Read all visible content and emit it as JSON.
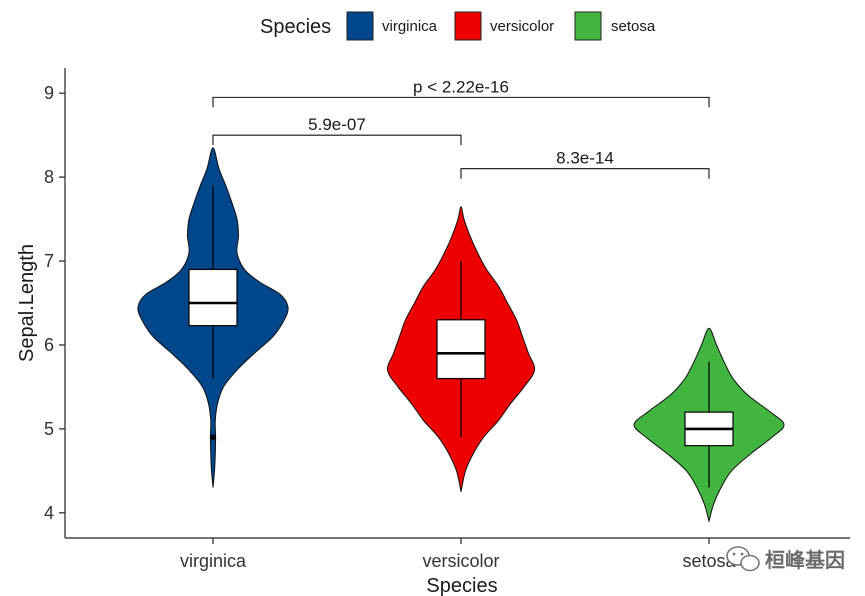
{
  "legend": {
    "title": "Species",
    "items": [
      {
        "label": "virginica",
        "color": "#00468B"
      },
      {
        "label": "versicolor",
        "color": "#ED0000"
      },
      {
        "label": "setosa",
        "color": "#42B540"
      }
    ]
  },
  "watermark": {
    "text": "桓峰基因",
    "icon": "wechat-icon"
  },
  "chart_data": {
    "type": "violin",
    "xlabel": "Species",
    "ylabel": "Sepal.Length",
    "ylim": [
      3.7,
      9.3
    ],
    "yticks": [
      4,
      5,
      6,
      7,
      8,
      9
    ],
    "grid": false,
    "legend_position": "top",
    "categories": [
      "virginica",
      "versicolor",
      "setosa"
    ],
    "colors": [
      "#00468B",
      "#ED0000",
      "#42B540"
    ],
    "series": [
      {
        "name": "virginica",
        "box": {
          "min": 5.6,
          "q1": 6.23,
          "median": 6.5,
          "q3": 6.9,
          "max": 7.9
        },
        "outliers": [
          4.9
        ],
        "violin_range": [
          4.3,
          8.35
        ],
        "density": [
          [
            4.3,
            0.0
          ],
          [
            4.5,
            0.02
          ],
          [
            4.7,
            0.03
          ],
          [
            4.9,
            0.035
          ],
          [
            5.1,
            0.03
          ],
          [
            5.3,
            0.06
          ],
          [
            5.5,
            0.14
          ],
          [
            5.7,
            0.32
          ],
          [
            5.9,
            0.55
          ],
          [
            6.1,
            0.8
          ],
          [
            6.3,
            0.95
          ],
          [
            6.45,
            1.0
          ],
          [
            6.6,
            0.9
          ],
          [
            6.75,
            0.62
          ],
          [
            6.9,
            0.42
          ],
          [
            7.1,
            0.32
          ],
          [
            7.3,
            0.34
          ],
          [
            7.5,
            0.32
          ],
          [
            7.7,
            0.25
          ],
          [
            7.9,
            0.17
          ],
          [
            8.1,
            0.08
          ],
          [
            8.35,
            0.0
          ]
        ]
      },
      {
        "name": "versicolor",
        "box": {
          "min": 4.9,
          "q1": 5.6,
          "median": 5.9,
          "q3": 6.3,
          "max": 7.0
        },
        "outliers": [],
        "violin_range": [
          4.25,
          7.65
        ],
        "density": [
          [
            4.25,
            0.0
          ],
          [
            4.5,
            0.06
          ],
          [
            4.7,
            0.16
          ],
          [
            4.9,
            0.3
          ],
          [
            5.1,
            0.5
          ],
          [
            5.3,
            0.66
          ],
          [
            5.5,
            0.84
          ],
          [
            5.7,
            0.98
          ],
          [
            5.9,
            0.9
          ],
          [
            6.1,
            0.82
          ],
          [
            6.3,
            0.74
          ],
          [
            6.5,
            0.62
          ],
          [
            6.7,
            0.5
          ],
          [
            6.9,
            0.34
          ],
          [
            7.1,
            0.22
          ],
          [
            7.3,
            0.12
          ],
          [
            7.5,
            0.04
          ],
          [
            7.65,
            0.0
          ]
        ]
      },
      {
        "name": "setosa",
        "box": {
          "min": 4.3,
          "q1": 4.8,
          "median": 5.0,
          "q3": 5.2,
          "max": 5.8
        },
        "outliers": [],
        "violin_range": [
          3.9,
          6.2
        ],
        "density": [
          [
            3.9,
            0.0
          ],
          [
            4.1,
            0.06
          ],
          [
            4.3,
            0.16
          ],
          [
            4.5,
            0.3
          ],
          [
            4.7,
            0.55
          ],
          [
            4.9,
            0.84
          ],
          [
            5.05,
            1.0
          ],
          [
            5.2,
            0.82
          ],
          [
            5.4,
            0.52
          ],
          [
            5.6,
            0.32
          ],
          [
            5.8,
            0.2
          ],
          [
            6.0,
            0.1
          ],
          [
            6.2,
            0.0
          ]
        ]
      }
    ],
    "comparisons": [
      {
        "groups": [
          "virginica",
          "setosa"
        ],
        "label": "p < 2.22e-16",
        "y": 8.95
      },
      {
        "groups": [
          "virginica",
          "versicolor"
        ],
        "label": "5.9e-07",
        "y": 8.5
      },
      {
        "groups": [
          "versicolor",
          "setosa"
        ],
        "label": "8.3e-14",
        "y": 8.1
      }
    ]
  }
}
